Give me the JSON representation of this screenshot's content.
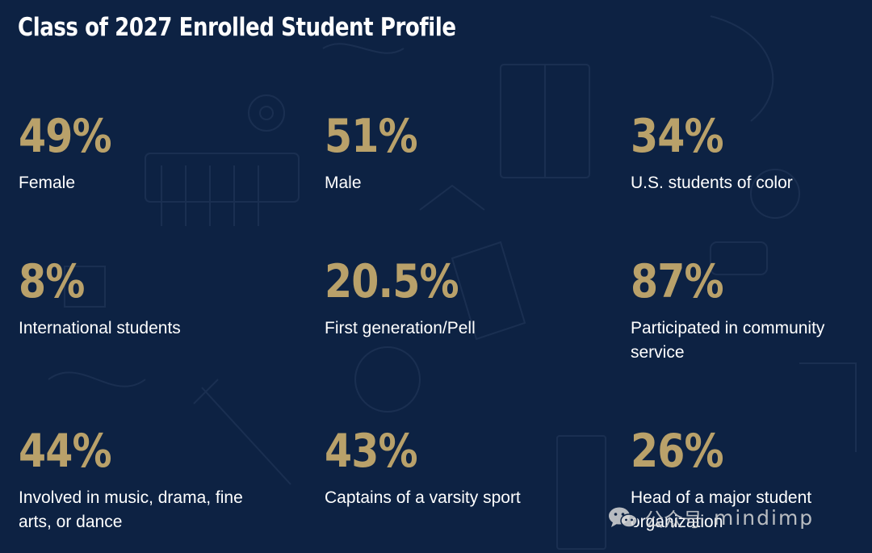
{
  "header": {
    "title": "Class of 2027 Enrolled Student Profile"
  },
  "stats": [
    {
      "value": "49%",
      "label": "Female"
    },
    {
      "value": "51%",
      "label": "Male"
    },
    {
      "value": "34%",
      "label": "U.S. students of color"
    },
    {
      "value": "8%",
      "label": "International students"
    },
    {
      "value": "20.5%",
      "label": "First generation/Pell"
    },
    {
      "value": "87%",
      "label": "Participated in community service"
    },
    {
      "value": "44%",
      "label": "Involved in music, drama, fine arts, or dance"
    },
    {
      "value": "43%",
      "label": "Captains of a varsity sport"
    },
    {
      "value": "26%",
      "label": "Head of a major student organization"
    }
  ],
  "watermark": {
    "icon": "wechat-icon",
    "label": "公众号",
    "name": "mindimp"
  },
  "colors": {
    "background": "#0d2243",
    "accent": "#b9a16a",
    "text": "#ffffff"
  }
}
